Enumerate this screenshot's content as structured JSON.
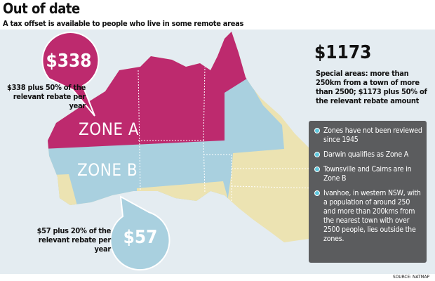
{
  "header": {
    "title": "Out of date",
    "subtitle": "A tax offset is available to people who live in some remote areas"
  },
  "zone_a": {
    "label": "ZONE A",
    "amount": "$338",
    "note": "$338 plus 50% of the relevant rebate per year"
  },
  "zone_b": {
    "label": "ZONE B",
    "amount": "$57",
    "note": "$57 plus 20% of the relevant rebate per year"
  },
  "special": {
    "amount": "$1173",
    "note": "Special areas: more than 250km from a town of more than 2500; $1173 plus 50% of the relevant rebate amount"
  },
  "facts": [
    "Zones have not been reviewed since 1945",
    "Darwin qualifies as Zone A",
    "Townsville and Cairns are in Zone B",
    "Ivanhoe, in western NSW, with a population of around 250 and more than 200kms from the nearest town with over 2500 people, lies outside the zones."
  ],
  "source": "SOURCE: NATMAP"
}
